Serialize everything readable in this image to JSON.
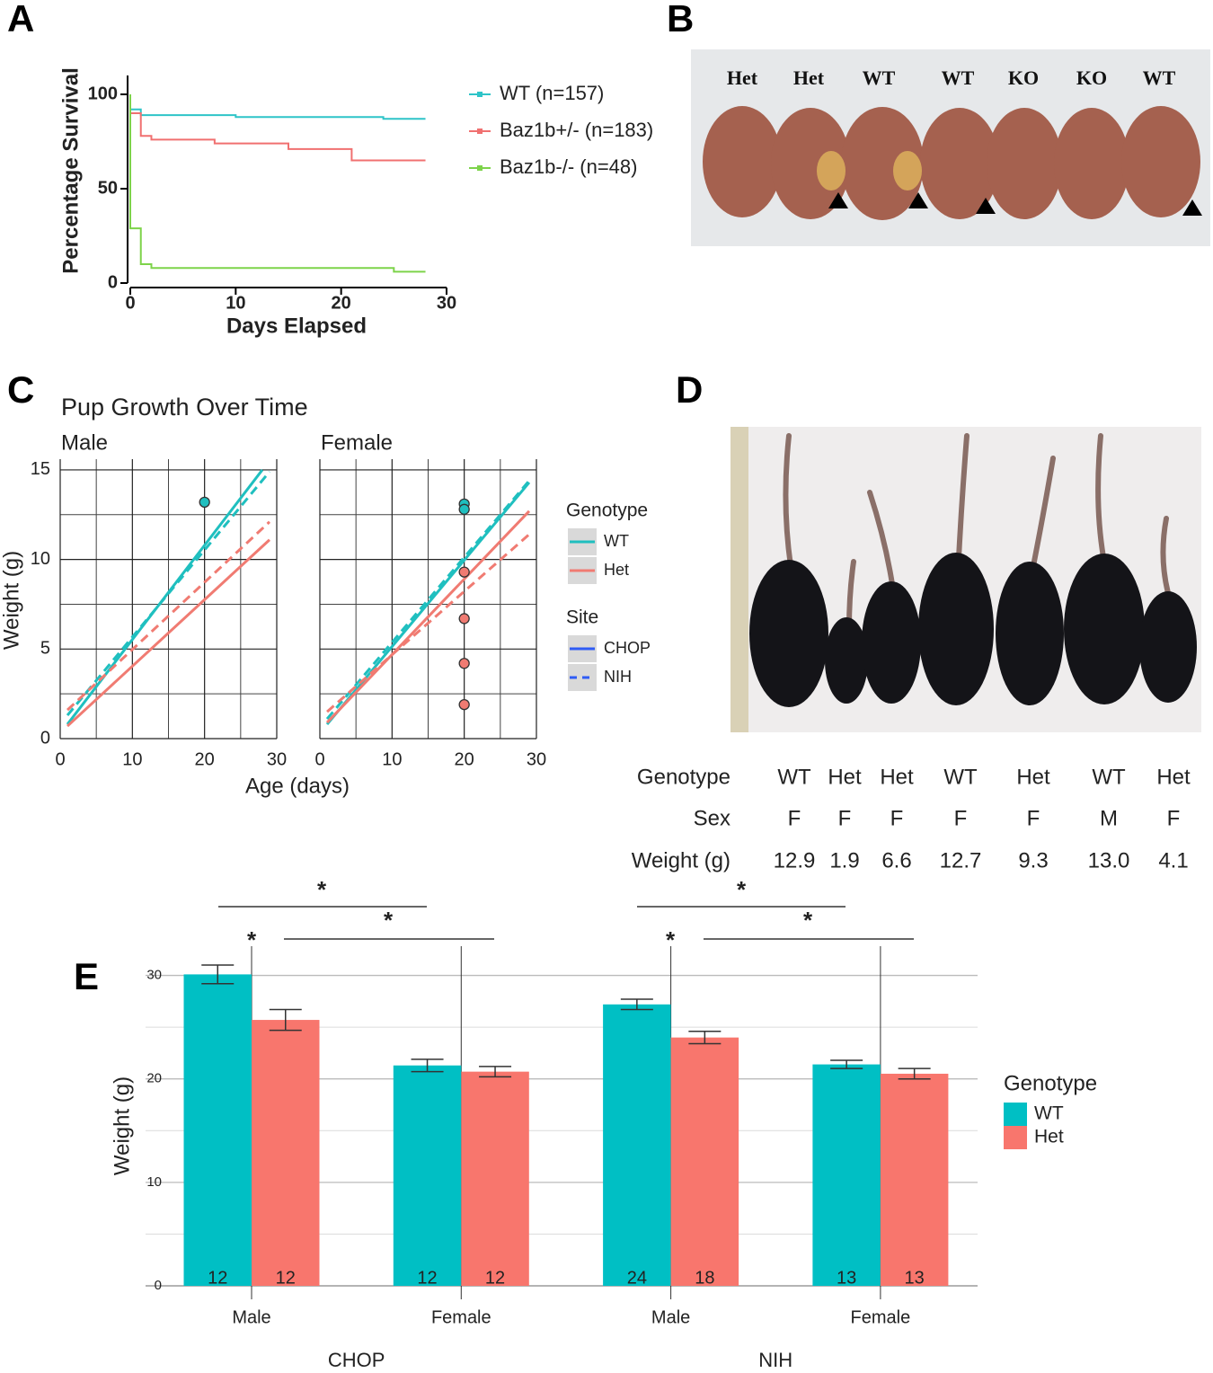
{
  "panel_labels": [
    "A",
    "B",
    "C",
    "D",
    "E"
  ],
  "photo_b": {
    "labels": [
      "Het",
      "Het",
      "WT",
      "WT",
      "KO",
      "KO",
      "WT"
    ]
  },
  "table_d": {
    "rows": [
      [
        "Genotype",
        "WT",
        "Het",
        "Het",
        "WT",
        "Het",
        "WT",
        "Het"
      ],
      [
        "Sex",
        "F",
        "F",
        "F",
        "F",
        "F",
        "M",
        "F"
      ],
      [
        "Weight (g)",
        "12.9",
        "1.9",
        "6.6",
        "12.7",
        "9.3",
        "13.0",
        "4.1"
      ]
    ]
  },
  "chart_data": [
    {
      "type": "line",
      "step": true,
      "x_label": "Days Elapsed",
      "y_label": "Percentage Survival",
      "xlim": [
        0,
        30
      ],
      "xticks": [
        0,
        10,
        20,
        30
      ],
      "ylim": [
        0,
        110
      ],
      "yticks": [
        0,
        50,
        100
      ],
      "series": [
        {
          "name": "WT (n=157)",
          "color": "#2ec4c8",
          "x": [
            0,
            1,
            1,
            10,
            10,
            24,
            24,
            28
          ],
          "values": [
            92,
            92,
            89,
            89,
            88,
            88,
            87,
            87
          ]
        },
        {
          "name": "Baz1b+/- (n=183)",
          "color": "#f07070",
          "x": [
            0,
            1,
            1,
            2,
            2,
            8,
            8,
            15,
            15,
            21,
            21,
            28
          ],
          "values": [
            90,
            90,
            78,
            78,
            76,
            76,
            74,
            74,
            71,
            71,
            65,
            65
          ]
        },
        {
          "name": "Baz1b-/- (n=48)",
          "color": "#7dd34a",
          "x": [
            0,
            0,
            1,
            1,
            2,
            2,
            25,
            25,
            28
          ],
          "values": [
            100,
            29,
            29,
            10,
            10,
            8,
            8,
            6,
            6
          ]
        }
      ]
    },
    {
      "type": "line",
      "title": "Pup Growth Over Time",
      "x_label": "Age (days)",
      "y_label": "Weight (g)",
      "xlim": [
        0,
        30
      ],
      "xticks": [
        0,
        10,
        20,
        30
      ],
      "xminor": [
        5,
        15,
        25
      ],
      "ylim": [
        0,
        15.6
      ],
      "yticks": [
        0,
        5,
        10,
        15
      ],
      "yminor": [
        2.5,
        7.5,
        12.5
      ],
      "grid": true,
      "facets": [
        {
          "name": "Male",
          "series": [
            {
              "genotype": "WT",
              "site": "CHOP",
              "color": "#1fbfbf",
              "dashed": false,
              "x": [
                1,
                28
              ],
              "values": [
                0.8,
                15.0
              ]
            },
            {
              "genotype": "WT",
              "site": "NIH",
              "color": "#1fbfbf",
              "dashed": true,
              "x": [
                1,
                29
              ],
              "values": [
                1.3,
                14.9
              ]
            },
            {
              "genotype": "Het",
              "site": "CHOP",
              "color": "#f07b72",
              "dashed": false,
              "x": [
                1,
                29
              ],
              "values": [
                0.7,
                11.1
              ]
            },
            {
              "genotype": "Het",
              "site": "NIH",
              "color": "#f07b72",
              "dashed": true,
              "x": [
                1,
                29
              ],
              "values": [
                1.6,
                12.1
              ]
            }
          ],
          "points": [
            {
              "x": 20,
              "y": 13.2,
              "color": "#1fbfbf"
            }
          ]
        },
        {
          "name": "Female",
          "series": [
            {
              "genotype": "WT",
              "site": "CHOP",
              "color": "#1fbfbf",
              "dashed": false,
              "x": [
                1,
                29
              ],
              "values": [
                0.8,
                14.3
              ]
            },
            {
              "genotype": "WT",
              "site": "NIH",
              "color": "#1fbfbf",
              "dashed": true,
              "x": [
                1,
                29
              ],
              "values": [
                1.1,
                14.4
              ]
            },
            {
              "genotype": "Het",
              "site": "CHOP",
              "color": "#f07b72",
              "dashed": false,
              "x": [
                1,
                29
              ],
              "values": [
                0.9,
                12.7
              ]
            },
            {
              "genotype": "Het",
              "site": "NIH",
              "color": "#f07b72",
              "dashed": true,
              "x": [
                1,
                29
              ],
              "values": [
                1.5,
                11.4
              ]
            }
          ],
          "points": [
            {
              "x": 20,
              "y": 13.1,
              "color": "#1fbfbf"
            },
            {
              "x": 20,
              "y": 12.8,
              "color": "#1fbfbf"
            },
            {
              "x": 20,
              "y": 9.3,
              "color": "#f07b72"
            },
            {
              "x": 20,
              "y": 6.7,
              "color": "#f07b72"
            },
            {
              "x": 20,
              "y": 4.2,
              "color": "#f07b72"
            },
            {
              "x": 20,
              "y": 1.9,
              "color": "#f07b72"
            }
          ]
        }
      ],
      "legend": [
        {
          "title": "Genotype",
          "entries": [
            {
              "name": "WT",
              "color": "#1fbfbf",
              "dashed": false
            },
            {
              "name": "Het",
              "color": "#f07b72",
              "dashed": false
            }
          ]
        },
        {
          "title": "Site",
          "entries": [
            {
              "name": "CHOP",
              "color": "#2f5cf5",
              "dashed": false
            },
            {
              "name": "NIH",
              "color": "#2f5cf5",
              "dashed": true
            }
          ]
        }
      ]
    },
    {
      "type": "bar",
      "y_label": "Weight (g)",
      "categories": [
        "Male",
        "Female",
        "Male",
        "Female"
      ],
      "groups": [
        "CHOP",
        "NIH"
      ],
      "ylim": [
        0,
        33
      ],
      "yticks": [
        0,
        10,
        20,
        30
      ],
      "yminor": [
        5,
        15,
        25
      ],
      "grid": true,
      "legend_title": "Genotype",
      "series": [
        {
          "name": "WT",
          "color": "#00bfc4",
          "values": [
            30.1,
            21.3,
            27.2,
            21.4
          ],
          "errors": [
            0.9,
            0.6,
            0.5,
            0.4
          ],
          "n": [
            12,
            12,
            24,
            13
          ]
        },
        {
          "name": "Het",
          "color": "#f8766d",
          "values": [
            25.7,
            20.7,
            24.0,
            20.5
          ],
          "errors": [
            1.0,
            0.5,
            0.6,
            0.5
          ],
          "n": [
            12,
            12,
            18,
            13
          ]
        }
      ],
      "annotations": [
        "*",
        "*",
        "*",
        "*",
        "*",
        "*"
      ]
    }
  ]
}
